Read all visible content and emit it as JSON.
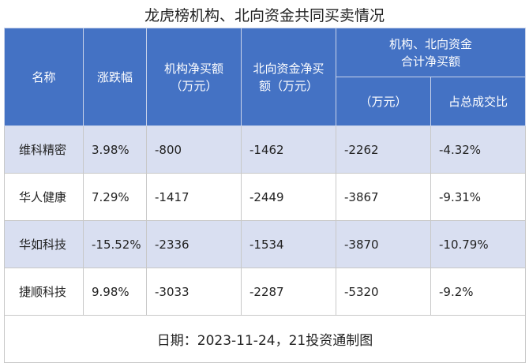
{
  "title": "龙虎榜机构、北向资金共同买卖情况",
  "table": {
    "header": {
      "name": "名称",
      "change": "涨跌幅",
      "inst": "机构净买额\n（万元）",
      "north": "北向资金净买\n额（万元）",
      "combined": "机构、北向资金\n合计净买额",
      "combined_unit": "（万元）",
      "ratio": "占总成交比"
    },
    "rows": [
      [
        "维科精密",
        "3.98%",
        "-800",
        "-1462",
        "-2262",
        "-4.32%"
      ],
      [
        "华人健康",
        "7.29%",
        "-1417",
        "-2449",
        "-3867",
        "-9.31%"
      ],
      [
        "华如科技",
        "-15.52%",
        "-2336",
        "-1534",
        "-3870",
        "-10.79%"
      ],
      [
        "捷顺科技",
        "9.98%",
        "-3033",
        "-2287",
        "-5320",
        "-9.2%"
      ]
    ],
    "footer": "日期：2023-11-24，21投资通制图"
  }
}
